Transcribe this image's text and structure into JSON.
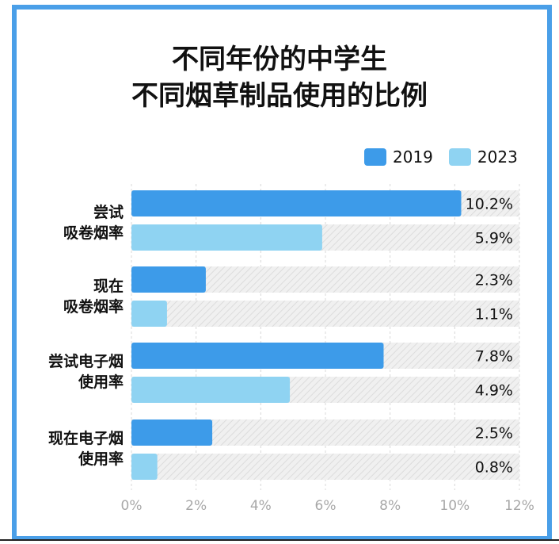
{
  "title": {
    "line1": "不同年份的中学生",
    "line2": "不同烟草制品使用的比例"
  },
  "colors": {
    "border": "#4a9fe8",
    "series_2019": "#3d9be9",
    "series_2023": "#8fd3f2",
    "track": "#ebebeb"
  },
  "legend": [
    {
      "label": "2019"
    },
    {
      "label": "2023"
    }
  ],
  "chart_data": {
    "type": "bar",
    "orientation": "horizontal",
    "categories": [
      {
        "line1": "尝试",
        "line2": "吸卷烟率"
      },
      {
        "line1": "现在",
        "line2": "吸卷烟率"
      },
      {
        "line1": "尝试电子烟",
        "line2": "使用率"
      },
      {
        "line1": "现在电子烟",
        "line2": "使用率"
      }
    ],
    "series": [
      {
        "name": "2019",
        "values": [
          10.2,
          2.3,
          7.8,
          2.5
        ],
        "labels": [
          "10.2%",
          "2.3%",
          "7.8%",
          "2.5%"
        ]
      },
      {
        "name": "2023",
        "values": [
          5.9,
          1.1,
          4.9,
          0.8
        ],
        "labels": [
          "5.9%",
          "1.1%",
          "4.9%",
          "0.8%"
        ]
      }
    ],
    "xlim": [
      0,
      12
    ],
    "xticks": [
      "0%",
      "2%",
      "4%",
      "6%",
      "8%",
      "10%",
      "12%"
    ],
    "grid": true,
    "legend_position": "top-right"
  }
}
